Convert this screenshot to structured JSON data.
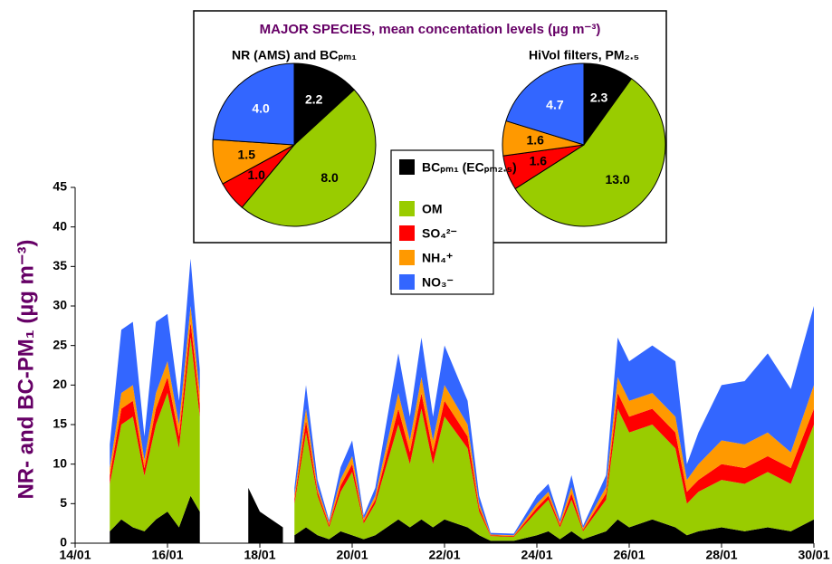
{
  "chart_data": [
    {
      "type": "stacked_area",
      "y_label": "NR- and BC-PM₁ (µg m⁻³)",
      "xlim": [
        14,
        30
      ],
      "ylim": [
        0,
        45
      ],
      "xticks": [
        {
          "value": 14,
          "label": "14/01"
        },
        {
          "value": 16,
          "label": "16/01"
        },
        {
          "value": 18,
          "label": "18/01"
        },
        {
          "value": 20,
          "label": "20/01"
        },
        {
          "value": 22,
          "label": "22/01"
        },
        {
          "value": 24,
          "label": "24/01"
        },
        {
          "value": 26,
          "label": "26/01"
        },
        {
          "value": 28,
          "label": "28/01"
        },
        {
          "value": 30,
          "label": "30/01"
        }
      ],
      "yticks": [
        0,
        5,
        10,
        15,
        20,
        25,
        30,
        35,
        40,
        45
      ],
      "x": [
        14.75,
        15,
        15.25,
        15.5,
        15.75,
        16,
        16.25,
        16.5,
        16.7,
        17,
        17.75,
        18,
        18.5,
        18.6,
        18.75,
        19,
        19.25,
        19.5,
        19.75,
        20,
        20.25,
        20.5,
        21,
        21.25,
        21.5,
        21.75,
        22,
        22.5,
        22.75,
        23,
        23.5,
        24,
        24.25,
        24.5,
        24.75,
        25,
        25.5,
        25.75,
        26,
        26.5,
        27,
        27.25,
        27.5,
        28,
        28.5,
        29,
        29.5,
        30
      ],
      "series": [
        {
          "name": "BCₚₘ₁ (ECₚₘ₂.₅)",
          "color": "#000000",
          "values": [
            1.5,
            3,
            2,
            1.5,
            3,
            4,
            2,
            6,
            4,
            null,
            7,
            4,
            2,
            null,
            1,
            2,
            1,
            0.5,
            1.5,
            1,
            0.5,
            1,
            3,
            2,
            3,
            2,
            3,
            2,
            1,
            0.3,
            0.3,
            1,
            1.5,
            0.5,
            1.5,
            0.5,
            1.5,
            3,
            2,
            3,
            2,
            1,
            1.5,
            2,
            1.5,
            2,
            1.5,
            3
          ]
        },
        {
          "name": "OM",
          "color": "#99cc00",
          "values": [
            6,
            12,
            14,
            7,
            12,
            15,
            10,
            20,
            12,
            null,
            null,
            null,
            null,
            null,
            4,
            12,
            5,
            1.5,
            5,
            8,
            2,
            4,
            12,
            8,
            14,
            8,
            13,
            10,
            3,
            0.6,
            0.5,
            3,
            4,
            1.5,
            4,
            1,
            4,
            14,
            12,
            12,
            10,
            4,
            5,
            6,
            6,
            7,
            6,
            12
          ]
        },
        {
          "name": "SO₄²⁻",
          "color": "#ff0000",
          "values": [
            1,
            2,
            2,
            1,
            2,
            2,
            1.5,
            2,
            1.5,
            null,
            null,
            null,
            null,
            null,
            0.5,
            1.5,
            0.5,
            0.3,
            0.8,
            1,
            0.3,
            0.5,
            2,
            1.5,
            2,
            1.5,
            2,
            1.5,
            0.5,
            0.1,
            0.1,
            0.5,
            0.5,
            0.3,
            0.8,
            0.2,
            0.8,
            2,
            2,
            2,
            2,
            1.5,
            1.5,
            2,
            2,
            2,
            2,
            2
          ]
        },
        {
          "name": "NH₄⁺",
          "color": "#ff9900",
          "values": [
            1,
            2,
            2,
            1,
            2,
            2,
            1.5,
            2,
            1.5,
            null,
            null,
            null,
            null,
            null,
            0.5,
            1.5,
            0.5,
            0.3,
            0.8,
            1,
            0.3,
            0.5,
            2,
            1.5,
            2,
            1.5,
            2,
            1.5,
            0.5,
            0.1,
            0.1,
            0.5,
            0.5,
            0.3,
            0.8,
            0.2,
            0.8,
            2,
            2,
            2,
            2,
            1.5,
            2,
            3,
            3,
            3,
            2,
            3
          ]
        },
        {
          "name": "NO₃⁻",
          "color": "#3366ff",
          "values": [
            3,
            8,
            8,
            3,
            9,
            6,
            3,
            6,
            3,
            null,
            null,
            null,
            null,
            null,
            1,
            3,
            1,
            0.3,
            1.5,
            2,
            0.4,
            1,
            5,
            3,
            5,
            3,
            5,
            3,
            1,
            0.2,
            0.2,
            1,
            1,
            0.4,
            1.5,
            0.3,
            1.5,
            5,
            5,
            6,
            7,
            2,
            4,
            7,
            8,
            10,
            8,
            10
          ]
        }
      ]
    },
    {
      "type": "pie",
      "title": "NR (AMS) and BCₚₘ₁",
      "colors": [
        "#000000",
        "#99cc00",
        "#ff0000",
        "#ff9900",
        "#3366ff"
      ],
      "values": [
        2.2,
        8,
        1,
        1.5,
        4
      ],
      "value_labels": [
        "2.2",
        "8.0",
        "1.0",
        "1.5",
        "4.0"
      ]
    },
    {
      "type": "pie",
      "title": "HiVol filters, PM₂.₅",
      "colors": [
        "#000000",
        "#99cc00",
        "#ff0000",
        "#ff9900",
        "#3366ff"
      ],
      "values": [
        2.3,
        13,
        1.6,
        1.6,
        4.7
      ],
      "value_labels": [
        "2.3",
        "13.0",
        "1.6",
        "1.6",
        "4.7"
      ]
    },
    {
      "type": "inset_title",
      "title": "MAJOR SPECIES, mean concentation levels (µg m⁻³)"
    }
  ]
}
